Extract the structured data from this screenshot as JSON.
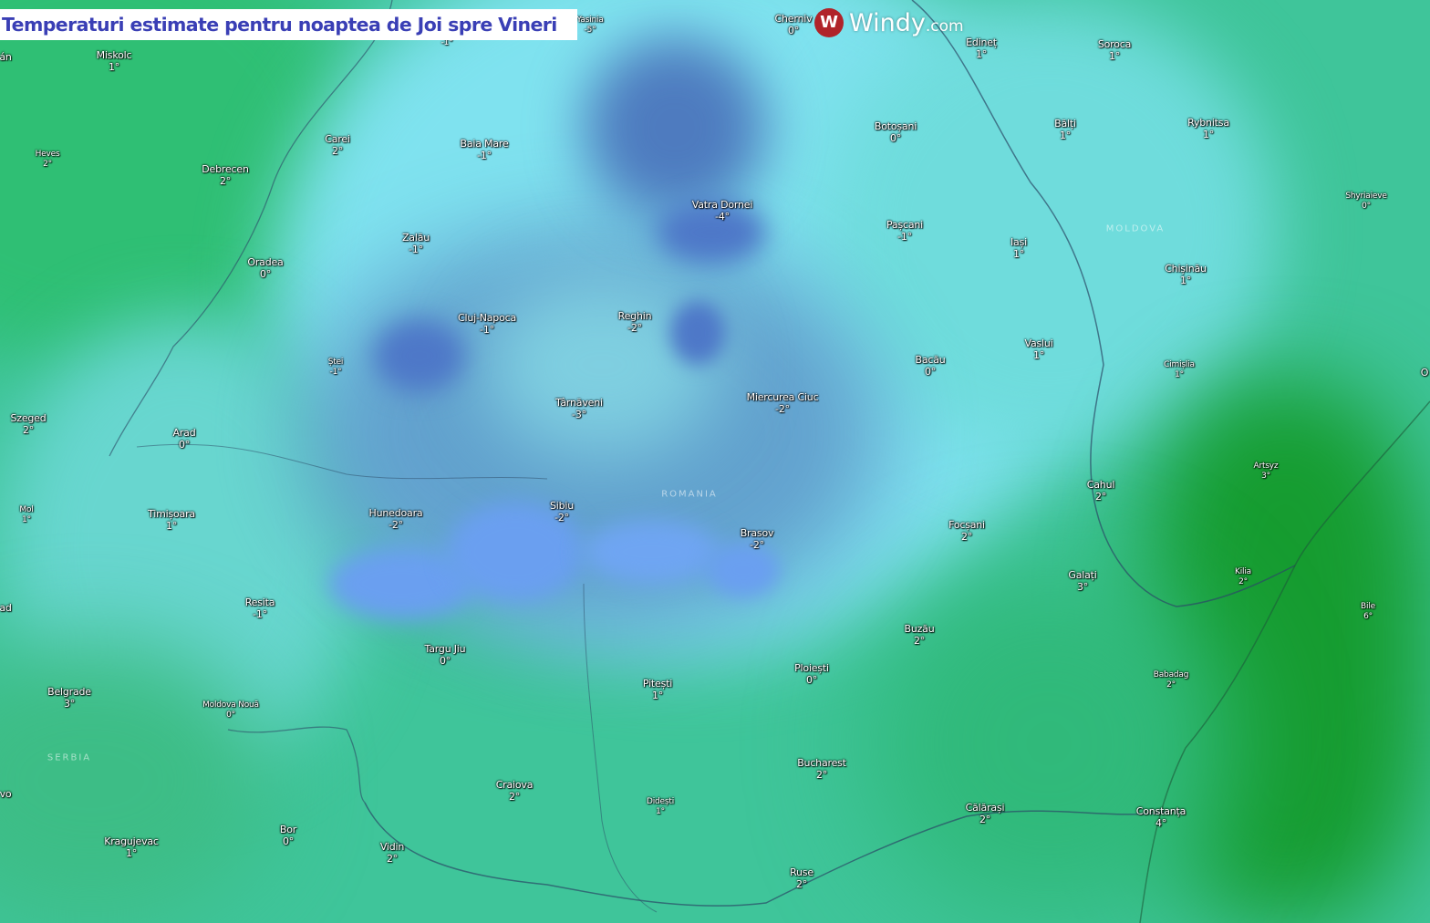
{
  "title": "Temperaturi estimate pentru noaptea de Joi spre Vineri",
  "logo": {
    "brand": "Windy",
    "suffix": ".com",
    "icon": "windy-logo-icon"
  },
  "colors": {
    "cold": "#5b86d9",
    "cool": "#7fe0ee",
    "mild": "#3fc59a",
    "warm": "#16a34a",
    "title_text": "#3a3fb5"
  },
  "regions": [
    "MOLDOVA",
    "ROMANIA",
    "SERBIA"
  ],
  "edge_labels": [
    "án",
    "ad",
    "vo",
    "O"
  ],
  "cities": [
    {
      "name": "Miskolc",
      "temp": "1°"
    },
    {
      "name": "Carei",
      "temp": "2°"
    },
    {
      "name": "Baia Mare",
      "temp": "-1°"
    },
    {
      "name": "Heves",
      "temp": "2°"
    },
    {
      "name": "Debrecen",
      "temp": "2°"
    },
    {
      "name": "Zalău",
      "temp": "-1°"
    },
    {
      "name": "Oradea",
      "temp": "0°"
    },
    {
      "name": "Vatra Dornei",
      "temp": "-4°"
    },
    {
      "name": "Pașcani",
      "temp": "-1°"
    },
    {
      "name": "Botoșani",
      "temp": "0°"
    },
    {
      "name": "Edineț",
      "temp": "1°"
    },
    {
      "name": "Soroca",
      "temp": "1°"
    },
    {
      "name": "Bălți",
      "temp": "1°"
    },
    {
      "name": "Rybnitsa",
      "temp": "1°"
    },
    {
      "name": "Shyriaieve",
      "temp": "0°"
    },
    {
      "name": "Iași",
      "temp": "1°"
    },
    {
      "name": "Chișinău",
      "temp": "1°"
    },
    {
      "name": "Cluj-Napoca",
      "temp": "-1°"
    },
    {
      "name": "Reghin",
      "temp": "-2°"
    },
    {
      "name": "Ștei",
      "temp": "-1°"
    },
    {
      "name": "Bacău",
      "temp": "0°"
    },
    {
      "name": "Vaslui",
      "temp": "1°"
    },
    {
      "name": "Cimișlia",
      "temp": "1°"
    },
    {
      "name": "Szeged",
      "temp": "2°"
    },
    {
      "name": "Arad",
      "temp": "0°"
    },
    {
      "name": "Târnăveni",
      "temp": "-3°"
    },
    {
      "name": "Miercurea Ciuc",
      "temp": "-2°"
    },
    {
      "name": "Artsyz",
      "temp": "3°"
    },
    {
      "name": "Cahul",
      "temp": "2°"
    },
    {
      "name": "Mol",
      "temp": "1°"
    },
    {
      "name": "Timișoara",
      "temp": "1°"
    },
    {
      "name": "Hunedoara",
      "temp": "-2°"
    },
    {
      "name": "Sibiu",
      "temp": "-2°"
    },
    {
      "name": "Brasov",
      "temp": "-2°"
    },
    {
      "name": "Focșani",
      "temp": "2°"
    },
    {
      "name": "Galați",
      "temp": "3°"
    },
    {
      "name": "Kilia",
      "temp": "2°"
    },
    {
      "name": "Bile",
      "temp": "6°"
    },
    {
      "name": "Resita",
      "temp": "-1°"
    },
    {
      "name": "Buzău",
      "temp": "2°"
    },
    {
      "name": "Targu Jiu",
      "temp": "0°"
    },
    {
      "name": "Pitești",
      "temp": "1°"
    },
    {
      "name": "Ploiești",
      "temp": "0°"
    },
    {
      "name": "Babadag",
      "temp": "2°"
    },
    {
      "name": "Belgrade",
      "temp": "3°"
    },
    {
      "name": "Moldova Nouă",
      "temp": "0°"
    },
    {
      "name": "Bucharest",
      "temp": "2°"
    },
    {
      "name": "Craiova",
      "temp": "2°"
    },
    {
      "name": "Didești",
      "temp": "1°"
    },
    {
      "name": "Călărași",
      "temp": "2°"
    },
    {
      "name": "Constanța",
      "temp": "4°"
    },
    {
      "name": "Bor",
      "temp": "0°"
    },
    {
      "name": "Kragujevac",
      "temp": "1°"
    },
    {
      "name": "Vidin",
      "temp": "2°"
    },
    {
      "name": "Ruse",
      "temp": "2°"
    },
    {
      "name": "Cherniv",
      "temp": "0°"
    },
    {
      "name": "Yasinia",
      "temp": "-5°"
    },
    {
      "name": "",
      "temp": "-1°"
    }
  ]
}
